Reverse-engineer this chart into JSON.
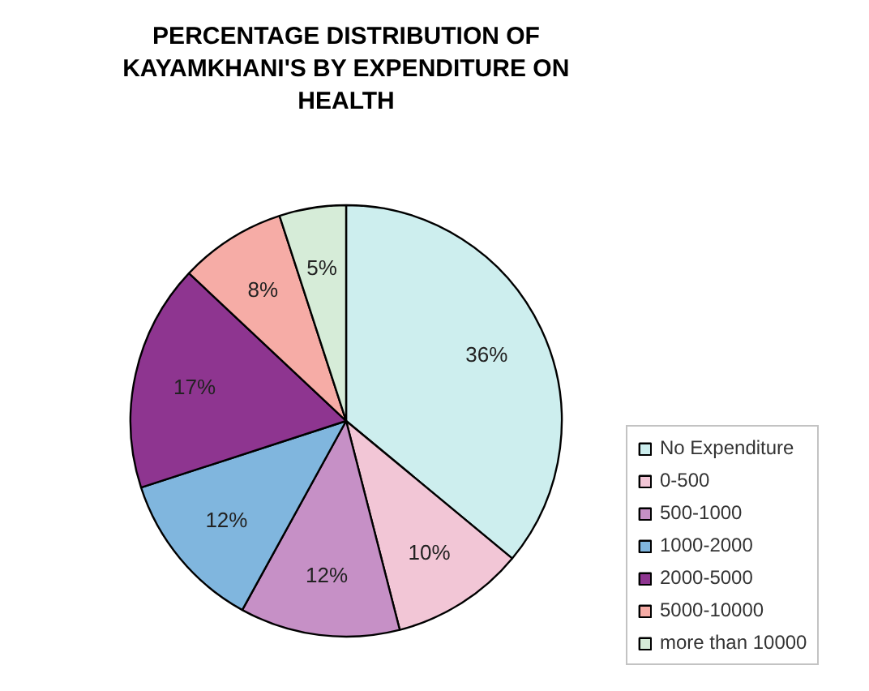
{
  "chart_data": {
    "type": "pie",
    "title": "PERCENTAGE DISTRIBUTION OF KAYAMKHANI'S BY EXPENDITURE ON HEALTH",
    "categories": [
      "No Expenditure",
      "0-500",
      "500-1000",
      "1000-2000",
      "2000-5000",
      "5000-10000",
      "more than 10000"
    ],
    "values": [
      36,
      10,
      12,
      12,
      17,
      8,
      5
    ],
    "colors": [
      "#cdeeee",
      "#f2c6d6",
      "#c690c6",
      "#80b6de",
      "#8e3590",
      "#f6aca6",
      "#d6ecd8"
    ],
    "value_labels": [
      "36%",
      "10%",
      "12%",
      "12%",
      "17%",
      "8%",
      "5%"
    ],
    "legend": "right"
  }
}
